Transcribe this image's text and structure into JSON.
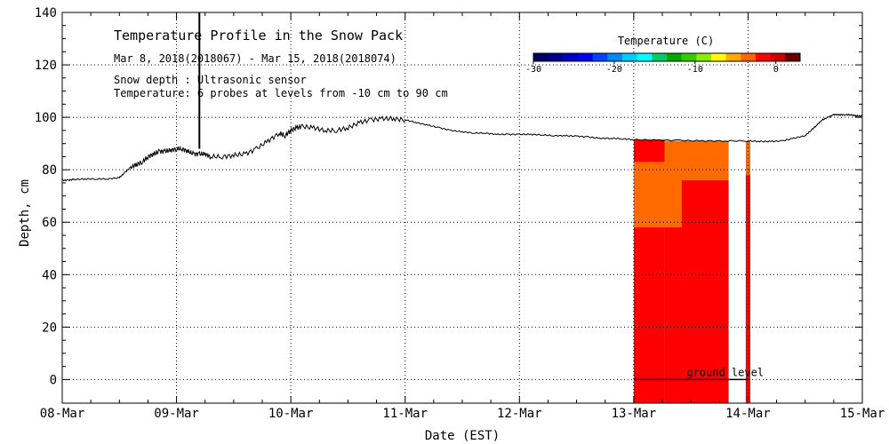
{
  "chart_data": {
    "type": "line",
    "title": "Temperature Profile in the Snow Pack",
    "subtitle": "Mar  8, 2018(2018067) - Mar 15, 2018(2018074)",
    "notes": [
      "Snow depth : Ultrasonic sensor",
      "Temperature:  6 probes at levels from -10 cm to 90 cm"
    ],
    "xlabel": "Date (EST)",
    "ylabel": "Depth, cm",
    "xlim": [
      "08-Mar",
      "15-Mar"
    ],
    "ylim": [
      -9,
      140
    ],
    "grid": true,
    "x_ticks": [
      "08-Mar",
      "09-Mar",
      "10-Mar",
      "11-Mar",
      "12-Mar",
      "13-Mar",
      "14-Mar",
      "15-Mar"
    ],
    "y_ticks": [
      0,
      20,
      40,
      60,
      80,
      100,
      120,
      140
    ],
    "snow_depth": {
      "x_days": [
        0,
        0.05,
        0.1,
        0.2,
        0.3,
        0.4,
        0.5,
        0.55,
        0.6,
        0.65,
        0.7,
        0.75,
        0.8,
        0.85,
        0.9,
        0.95,
        1.0,
        1.05,
        1.1,
        1.15,
        1.2,
        1.25,
        1.3,
        1.4,
        1.5,
        1.6,
        1.7,
        1.8,
        1.9,
        1.95,
        2.0,
        2.05,
        2.1,
        2.2,
        2.3,
        2.4,
        2.5,
        2.6,
        2.7,
        2.8,
        2.9,
        3.0,
        3.1,
        3.2,
        3.3,
        3.4,
        3.5,
        3.6,
        3.7,
        3.8,
        3.9,
        4.0,
        4.1,
        4.2,
        4.3,
        4.4,
        4.5,
        4.6,
        4.7,
        4.8,
        4.9,
        5.0,
        5.2,
        5.4,
        5.6,
        5.8,
        6.0,
        6.1,
        6.2,
        6.3,
        6.4,
        6.5,
        6.55,
        6.6,
        6.65,
        6.7,
        6.75,
        6.8,
        6.85,
        6.9,
        6.95,
        7.0
      ],
      "depth_cm": [
        76,
        76,
        76.3,
        76.5,
        76.5,
        76.5,
        77,
        79,
        81,
        82,
        83,
        85,
        86,
        87,
        87,
        87.5,
        88,
        88,
        87,
        86,
        86,
        86,
        85,
        85,
        85.5,
        86,
        88,
        91,
        94,
        93,
        95,
        96,
        96.5,
        96,
        95,
        95,
        96,
        98,
        99,
        99.5,
        99.5,
        99,
        98,
        97,
        96,
        95,
        94.5,
        94,
        94,
        93.5,
        93.5,
        93.5,
        93.5,
        93.3,
        93,
        93,
        92.8,
        92.5,
        92,
        92,
        91.8,
        91.5,
        91.3,
        91.2,
        91,
        91,
        91,
        90.8,
        90.8,
        91,
        92,
        93,
        95,
        97,
        99,
        100,
        101,
        101,
        101,
        101,
        100.5,
        100.5
      ]
    },
    "spike": {
      "x_day": 1.2,
      "depth_cm": 140
    },
    "temperature_bands": [
      {
        "x_start_day": 5.0,
        "x_end_day": 5.27,
        "low_cm": -9,
        "high_cm": 91.5,
        "color": "#ff0000"
      },
      {
        "x_start_day": 5.27,
        "x_end_day": 5.83,
        "low_cm": -9,
        "high_cm": 76,
        "color": "#ff0000"
      },
      {
        "x_start_day": 5.27,
        "x_end_day": 5.83,
        "low_cm": 76,
        "high_cm": 91,
        "color": "#ff6a00"
      },
      {
        "x_start_day": 5.0,
        "x_end_day": 5.42,
        "low_cm": 58,
        "high_cm": 83,
        "color": "#ff6a00"
      },
      {
        "x_start_day": 5.98,
        "x_end_day": 6.02,
        "low_cm": -9,
        "high_cm": 78,
        "color": "#ff0000"
      },
      {
        "x_start_day": 5.98,
        "x_end_day": 6.02,
        "low_cm": 78,
        "high_cm": 91,
        "color": "#ff6a00"
      }
    ],
    "ground_level": {
      "label": "ground level",
      "x_start_day": 5.0,
      "x_end_day": 6.0,
      "depth_cm": 0
    },
    "colorbar": {
      "title": "Temperature (C)",
      "ticks": [
        -30,
        -20,
        -10,
        0
      ],
      "range": [
        -30,
        3
      ],
      "colors": [
        "#000066",
        "#00008b",
        "#0000cc",
        "#0000ff",
        "#0044ff",
        "#0088ff",
        "#00ccff",
        "#00ffff",
        "#00cc66",
        "#00aa00",
        "#33cc00",
        "#88ee00",
        "#ffff00",
        "#ffaa00",
        "#ff6600",
        "#ff0000",
        "#cc0000",
        "#660000"
      ]
    }
  }
}
